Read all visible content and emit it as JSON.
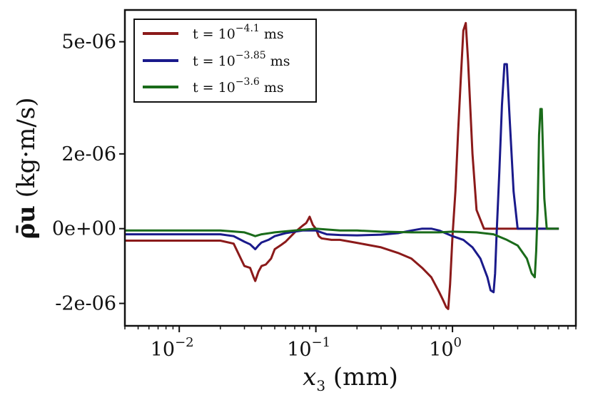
{
  "chart_data": {
    "type": "line",
    "x_scale": "log",
    "xlabel_var": "x",
    "xlabel_sub": "3",
    "xlabel_unit": "(mm)",
    "ylabel_symbol": "ρ̄u",
    "ylabel_unit": "(kg·m/s)",
    "xlim": [
      0.004,
      8
    ],
    "ylim": [
      -2.6e-06,
      5.85e-06
    ],
    "grid": false,
    "legend_position": "top-left",
    "x_ticks": [
      {
        "value": 0.01,
        "base": "10",
        "exp": "−2"
      },
      {
        "value": 0.1,
        "base": "10",
        "exp": "−1"
      },
      {
        "value": 1,
        "base": "10",
        "exp": "0"
      }
    ],
    "y_ticks": [
      {
        "value": -2e-06,
        "label": "-2e-06"
      },
      {
        "value": 0,
        "label": "0e+00"
      },
      {
        "value": 2e-06,
        "label": "2e-06"
      },
      {
        "value": 5e-06,
        "label": "5e-06"
      }
    ],
    "series": [
      {
        "name": "t = 10^-4.1 ms",
        "legend_prefix": "t = 10",
        "legend_exp": "−4.1",
        "legend_suffix": "ms",
        "color": "#8b1a1a",
        "x": [
          0.004,
          0.02,
          0.025,
          0.03,
          0.033,
          0.035,
          0.036,
          0.038,
          0.04,
          0.043,
          0.047,
          0.05,
          0.055,
          0.06,
          0.07,
          0.08,
          0.085,
          0.088,
          0.09,
          0.095,
          0.1,
          0.105,
          0.11,
          0.13,
          0.15,
          0.2,
          0.3,
          0.4,
          0.5,
          0.6,
          0.7,
          0.8,
          0.85,
          0.9,
          0.93,
          0.96,
          1.0,
          1.05,
          1.1,
          1.15,
          1.2,
          1.25,
          1.3,
          1.4,
          1.5,
          1.7,
          2.0,
          3.0,
          5.0,
          6.0
        ],
        "y": [
          -3.2e-07,
          -3.2e-07,
          -4e-07,
          -1e-06,
          -1.05e-06,
          -1.3e-06,
          -1.4e-06,
          -1.15e-06,
          -1e-06,
          -9.6e-07,
          -8e-07,
          -5.5e-07,
          -4.5e-07,
          -3.5e-07,
          -1e-07,
          8e-08,
          1.5e-07,
          2.5e-07,
          3.2e-07,
          1e-07,
          0,
          -2e-07,
          -2.6e-07,
          -3e-07,
          -3e-07,
          -3.8e-07,
          -5e-07,
          -6.5e-07,
          -8e-07,
          -1.05e-06,
          -1.3e-06,
          -1.7e-06,
          -1.9e-06,
          -2.1e-06,
          -2.15e-06,
          -1.5e-06,
          -2e-07,
          1e-06,
          2.6e-06,
          4e-06,
          5.3e-06,
          5.5e-06,
          4.5e-06,
          2e-06,
          5e-07,
          0,
          0,
          0,
          0,
          0
        ]
      },
      {
        "name": "t = 10^-3.85 ms",
        "legend_prefix": "t = 10",
        "legend_exp": "−3.85",
        "legend_suffix": "ms",
        "color": "#1a1a8b",
        "x": [
          0.004,
          0.02,
          0.025,
          0.03,
          0.033,
          0.036,
          0.038,
          0.04,
          0.045,
          0.05,
          0.06,
          0.07,
          0.08,
          0.1,
          0.12,
          0.15,
          0.2,
          0.3,
          0.4,
          0.5,
          0.6,
          0.7,
          0.8,
          1.0,
          1.2,
          1.4,
          1.6,
          1.8,
          1.9,
          2.0,
          2.05,
          2.1,
          2.2,
          2.3,
          2.4,
          2.5,
          2.6,
          2.8,
          3.0,
          4.0,
          6.0
        ],
        "y": [
          -1.5e-07,
          -1.5e-07,
          -2e-07,
          -3.5e-07,
          -4.2e-07,
          -5.5e-07,
          -4.5e-07,
          -3.7e-07,
          -3e-07,
          -2e-07,
          -1.2e-07,
          -8e-08,
          -5e-08,
          -5e-08,
          -1.5e-07,
          -1.7e-07,
          -1.8e-07,
          -1.6e-07,
          -1.2e-07,
          -5e-08,
          0,
          0,
          -5e-08,
          -2e-07,
          -3e-07,
          -5e-07,
          -8e-07,
          -1.3e-06,
          -1.65e-06,
          -1.7e-06,
          -1.2e-06,
          -2e-07,
          1.5e-06,
          3.3e-06,
          4.4e-06,
          4.4e-06,
          3.2e-06,
          1e-06,
          0,
          0,
          0
        ]
      },
      {
        "name": "t = 10^-3.6 ms",
        "legend_prefix": "t = 10",
        "legend_exp": "−3.6",
        "legend_suffix": "ms",
        "color": "#1a6b1a",
        "x": [
          0.004,
          0.02,
          0.03,
          0.033,
          0.036,
          0.04,
          0.05,
          0.07,
          0.1,
          0.15,
          0.2,
          0.3,
          0.5,
          0.8,
          1.0,
          1.5,
          2.0,
          2.5,
          3.0,
          3.5,
          3.8,
          4.0,
          4.1,
          4.2,
          4.3,
          4.4,
          4.5,
          4.6,
          4.7,
          4.9,
          5.2,
          6.0
        ],
        "y": [
          -5e-08,
          -5e-08,
          -1e-07,
          -1.5e-07,
          -2e-07,
          -1.5e-07,
          -1e-07,
          -5e-08,
          0,
          -5e-08,
          -5e-08,
          -8e-08,
          -1e-07,
          -1e-07,
          -8e-08,
          -1e-07,
          -1.5e-07,
          -3e-07,
          -4.5e-07,
          -8e-07,
          -1.2e-06,
          -1.3e-06,
          -6e-07,
          5e-07,
          2.5e-06,
          3.2e-06,
          3.2e-06,
          2e-06,
          8e-07,
          0,
          0,
          0
        ]
      }
    ]
  }
}
